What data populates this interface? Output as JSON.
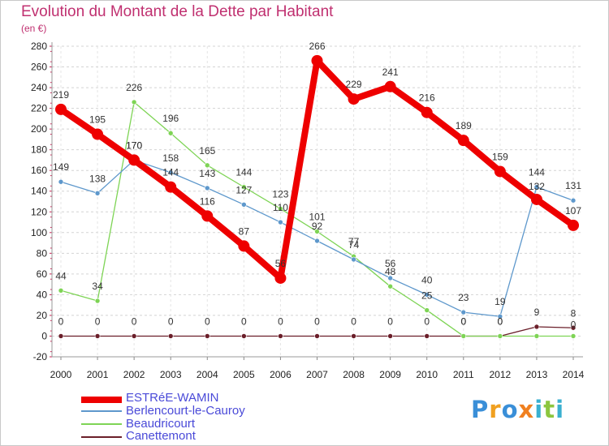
{
  "chart_data": {
    "type": "line",
    "title": "Evolution du Montant de la Dette par Habitant",
    "unit_label": "(en €)",
    "x": [
      "2000",
      "2001",
      "2002",
      "2003",
      "2004",
      "2005",
      "2006",
      "2007",
      "2008",
      "2009",
      "2010",
      "2011",
      "2012",
      "2013",
      "2014"
    ],
    "ylim": [
      -20,
      280
    ],
    "yticks": [
      -20,
      0,
      20,
      40,
      60,
      80,
      100,
      120,
      140,
      160,
      180,
      200,
      220,
      240,
      260,
      280
    ],
    "grid": "horizontal-dashed",
    "legend_position": "bottom-left",
    "series": [
      {
        "name": "ESTRéE-WAMIN",
        "color": "#ee0000",
        "values": [
          219,
          195,
          170,
          144,
          116,
          87,
          56,
          266,
          229,
          241,
          216,
          189,
          159,
          132,
          107
        ],
        "labels": [
          "219",
          "195",
          "170",
          "144",
          "116",
          "87",
          "56",
          "266",
          "229",
          "241",
          "216",
          "189",
          "159",
          "",
          "107"
        ]
      },
      {
        "name": "Berlencourt-le-Cauroy",
        "color": "#5e98cc",
        "values": [
          149,
          138,
          170,
          158,
          143,
          127,
          110,
          92,
          74,
          56,
          40,
          23,
          19,
          144,
          131
        ],
        "labels": [
          "149",
          "138",
          "170",
          "158",
          "143",
          "127",
          "110",
          "92",
          "74",
          "56",
          "40",
          "23",
          "19",
          "144",
          "131"
        ]
      },
      {
        "name": "Beaudricourt",
        "color": "#7ed455",
        "values": [
          44,
          34,
          226,
          196,
          165,
          144,
          123,
          101,
          77,
          48,
          25,
          0,
          0,
          0,
          0
        ],
        "labels": [
          "44",
          "34",
          "226",
          "196",
          "165",
          "144",
          "123",
          "101",
          "77",
          "48",
          "25",
          "0",
          "0",
          "",
          ""
        ]
      },
      {
        "name": "Canettemont",
        "color": "#6b1f2a",
        "values": [
          0,
          0,
          0,
          0,
          0,
          0,
          0,
          0,
          0,
          0,
          0,
          0,
          0,
          9,
          8
        ],
        "labels": [
          "0",
          "0",
          "0",
          "0",
          "0",
          "0",
          "0",
          "0",
          "0",
          "0",
          "0",
          "0",
          "0",
          "9",
          "8"
        ]
      }
    ],
    "extra_labels": [
      {
        "text": "132",
        "near": "2013"
      },
      {
        "text": "0",
        "near": "2014"
      }
    ]
  },
  "logo": {
    "letters": [
      {
        "ch": "P",
        "color": "#3a8fd8"
      },
      {
        "ch": "r",
        "color": "#f0a020"
      },
      {
        "ch": "o",
        "color": "#3a8fd8"
      },
      {
        "ch": "x",
        "color": "#f08020"
      },
      {
        "ch": "i",
        "color": "#3ab0d0"
      },
      {
        "ch": "t",
        "color": "#8cc63f"
      },
      {
        "ch": "i",
        "color": "#3ab0d0"
      }
    ]
  }
}
